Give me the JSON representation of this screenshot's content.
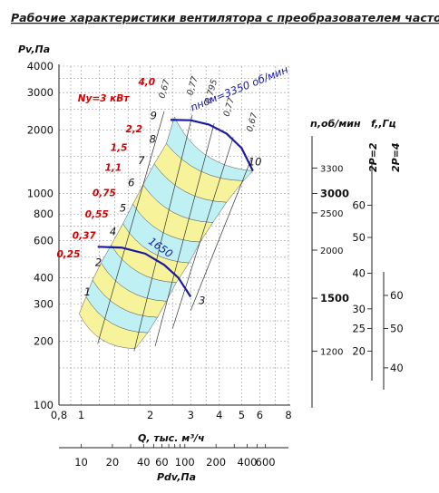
{
  "chart_data": {
    "type": "line",
    "title": "Рабочие характеристики вентилятора с преобразователем частоты",
    "ylabel": "Pv,Па",
    "xlabel": "Q, тыс. м³/ч",
    "x2label": "Pdv,Па",
    "rpm_label": "n,об/мин",
    "freq_label": "f,,Гц",
    "pole_labels": [
      "2P=2",
      "2P=4"
    ],
    "xscale": "log",
    "yscale": "log",
    "xlim": [
      0.8,
      8
    ],
    "ylim": [
      100,
      4000
    ],
    "grid": true,
    "y_ticks": [
      {
        "v": 100,
        "label": "100"
      },
      {
        "v": 200,
        "label": "200"
      },
      {
        "v": 300,
        "label": "300"
      },
      {
        "v": 400,
        "label": "400"
      },
      {
        "v": 600,
        "label": "600"
      },
      {
        "v": 800,
        "label": "800"
      },
      {
        "v": 1000,
        "label": "1000"
      },
      {
        "v": 2000,
        "label": "2000"
      },
      {
        "v": 3000,
        "label": "3000"
      },
      {
        "v": 4000,
        "label": "4000"
      }
    ],
    "x_ticks": [
      {
        "v": 0.8,
        "label": "0,8"
      },
      {
        "v": 1,
        "label": "1"
      },
      {
        "v": 2,
        "label": "2"
      },
      {
        "v": 3,
        "label": "3"
      },
      {
        "v": 4,
        "label": "4"
      },
      {
        "v": 5,
        "label": "5"
      },
      {
        "v": 6,
        "label": "6"
      },
      {
        "v": 8,
        "label": "8"
      }
    ],
    "pdv_ticks": [
      {
        "v": 10,
        "label": "10"
      },
      {
        "v": 20,
        "label": "20"
      },
      {
        "v": 40,
        "label": "40"
      },
      {
        "v": 60,
        "label": "60"
      },
      {
        "v": 100,
        "label": "100"
      },
      {
        "v": 200,
        "label": "200"
      },
      {
        "v": 400,
        "label": "400"
      },
      {
        "v": 600,
        "label": "600"
      }
    ],
    "rpm_ticks": [
      {
        "p": 180,
        "label": "1200",
        "bold": false
      },
      {
        "p": 320,
        "label": "1500",
        "bold": true
      },
      {
        "p": 540,
        "label": "2000",
        "bold": false
      },
      {
        "p": 810,
        "label": "2500",
        "bold": false
      },
      {
        "p": 1000,
        "label": "3000",
        "bold": true
      },
      {
        "p": 1320,
        "label": "3300",
        "bold": false
      }
    ],
    "freq_ticks_2p2": [
      {
        "p": 180,
        "label": "20"
      },
      {
        "p": 230,
        "label": "25"
      },
      {
        "p": 285,
        "label": "30"
      },
      {
        "p": 420,
        "label": "40"
      },
      {
        "p": 620,
        "label": "50"
      },
      {
        "p": 880,
        "label": "60"
      }
    ],
    "freq_ticks_2p4": [
      {
        "p": 150,
        "label": "40"
      },
      {
        "p": 230,
        "label": "50"
      },
      {
        "p": 330,
        "label": "60"
      }
    ],
    "bands": [
      {
        "label": "1",
        "color": "#f6f39a",
        "q_left": 0.98,
        "p_left": 270,
        "q_right": 1.72,
        "p_right": 185,
        "label_q": 1.03,
        "label_p": 330
      },
      {
        "label": "2",
        "color": "#bff0f3",
        "q_left": 1.05,
        "p_left": 325,
        "q_right": 1.95,
        "p_right": 220,
        "label_q": 1.15,
        "label_p": 455
      },
      {
        "label": "3",
        "color": "#f6f39a",
        "q_left": 1.12,
        "p_left": 390,
        "q_right": 2.15,
        "p_right": 260,
        "label_q": 3.25,
        "label_p": 300
      },
      {
        "label": "4",
        "color": "#bff0f3",
        "q_left": 1.22,
        "p_left": 470,
        "q_right": 2.35,
        "p_right": 310,
        "label_q": 1.33,
        "label_p": 635
      },
      {
        "label": "5",
        "color": "#f6f39a",
        "q_left": 1.35,
        "p_left": 570,
        "q_right": 2.6,
        "p_right": 380,
        "label_q": 1.47,
        "label_p": 820
      },
      {
        "label": "6",
        "color": "#bff0f3",
        "q_left": 1.52,
        "p_left": 720,
        "q_right": 2.95,
        "p_right": 470,
        "label_q": 1.6,
        "label_p": 1080
      },
      {
        "label": "7",
        "color": "#f6f39a",
        "q_left": 1.68,
        "p_left": 890,
        "q_right": 3.3,
        "p_right": 590,
        "label_q": 1.77,
        "label_p": 1380
      },
      {
        "label": "8",
        "color": "#bff0f3",
        "q_left": 1.86,
        "p_left": 1100,
        "q_right": 3.75,
        "p_right": 730,
        "label_q": 1.98,
        "label_p": 1740
      },
      {
        "label": "9",
        "color": "#f6f39a",
        "q_left": 2.08,
        "p_left": 1380,
        "q_right": 4.3,
        "p_right": 910,
        "label_q": 2.0,
        "label_p": 2250
      },
      {
        "label": "10",
        "color": "#bff0f3",
        "q_left": 2.35,
        "p_left": 1720,
        "q_right": 5.1,
        "p_right": 1150,
        "label_q": 5.35,
        "label_p": 1360
      }
    ],
    "band_top_envelope": [
      {
        "q": 0.98,
        "p": 270
      },
      {
        "q": 1.05,
        "p": 325
      },
      {
        "q": 1.12,
        "p": 390
      },
      {
        "q": 1.22,
        "p": 470
      },
      {
        "q": 1.35,
        "p": 570
      },
      {
        "q": 1.52,
        "p": 720
      },
      {
        "q": 1.68,
        "p": 890
      },
      {
        "q": 1.86,
        "p": 1100
      },
      {
        "q": 2.08,
        "p": 1380
      },
      {
        "q": 2.35,
        "p": 1720
      },
      {
        "q": 2.55,
        "p": 2300
      },
      {
        "q": 3.3,
        "p": 2200
      },
      {
        "q": 4.2,
        "p": 1950
      },
      {
        "q": 5.1,
        "p": 1560
      },
      {
        "q": 5.6,
        "p": 1280
      }
    ],
    "band_bottom_envelope": [
      {
        "q": 5.6,
        "p": 1280
      },
      {
        "q": 5.1,
        "p": 1150
      },
      {
        "q": 4.3,
        "p": 910
      },
      {
        "q": 3.75,
        "p": 730
      },
      {
        "q": 3.3,
        "p": 590
      },
      {
        "q": 2.95,
        "p": 470
      },
      {
        "q": 2.6,
        "p": 380
      },
      {
        "q": 2.35,
        "p": 310
      },
      {
        "q": 2.15,
        "p": 260
      },
      {
        "q": 1.95,
        "p": 220
      },
      {
        "q": 1.72,
        "p": 185
      },
      {
        "q": 1.55,
        "p": 215
      },
      {
        "q": 1.3,
        "p": 235
      },
      {
        "q": 1.1,
        "p": 250
      },
      {
        "q": 0.98,
        "p": 270
      }
    ],
    "speed_curves": [
      {
        "label": "nном=3350 об/мин",
        "n": 3350,
        "points": [
          {
            "q": 2.45,
            "p": 2230
          },
          {
            "q": 3.0,
            "p": 2220
          },
          {
            "q": 3.6,
            "p": 2120
          },
          {
            "q": 4.3,
            "p": 1920
          },
          {
            "q": 5.0,
            "p": 1640
          },
          {
            "q": 5.6,
            "p": 1280
          }
        ]
      },
      {
        "label": "1650",
        "n": 1650,
        "points": [
          {
            "q": 1.18,
            "p": 560
          },
          {
            "q": 1.5,
            "p": 555
          },
          {
            "q": 1.9,
            "p": 520
          },
          {
            "q": 2.3,
            "p": 460
          },
          {
            "q": 2.65,
            "p": 400
          },
          {
            "q": 3.0,
            "p": 325
          }
        ]
      }
    ],
    "efficiency_lines": [
      {
        "label": "0,67",
        "q_low": 1.18,
        "p_low": 195,
        "q_high": 2.3,
        "p_high": 2450,
        "label_q": 2.3,
        "label_p": 2800
      },
      {
        "label": "0,77",
        "q_low": 1.7,
        "p_low": 180,
        "q_high": 3.05,
        "p_high": 2350,
        "label_q": 3.05,
        "label_p": 2900
      },
      {
        "label": "0,795",
        "q_low": 2.1,
        "p_low": 190,
        "q_high": 3.8,
        "p_high": 2150,
        "label_q": 3.65,
        "label_p": 2650
      },
      {
        "label": "0,77",
        "q_low": 2.5,
        "p_low": 230,
        "q_high": 4.6,
        "p_high": 1850,
        "label_q": 4.4,
        "label_p": 2300
      },
      {
        "label": "0,67",
        "q_low": 3.0,
        "p_low": 280,
        "q_high": 5.5,
        "p_high": 1450,
        "label_q": 5.55,
        "label_p": 1950
      }
    ],
    "power_labels": [
      {
        "label": "0,25",
        "q": 0.88,
        "p": 500,
        "bold": false
      },
      {
        "label": "0,37",
        "q": 1.03,
        "p": 610,
        "bold": false
      },
      {
        "label": "0,55",
        "q": 1.17,
        "p": 770,
        "bold": false
      },
      {
        "label": "0,75",
        "q": 1.26,
        "p": 970,
        "bold": false
      },
      {
        "label": "1,1",
        "q": 1.38,
        "p": 1280,
        "bold": false
      },
      {
        "label": "1,5",
        "q": 1.46,
        "p": 1590,
        "bold": false
      },
      {
        "label": "2,2",
        "q": 1.7,
        "p": 1950,
        "bold": false
      },
      {
        "label": "Nу=3 кВт",
        "q": 1.25,
        "p": 2720,
        "bold": true
      },
      {
        "label": "4,0",
        "q": 1.93,
        "p": 3250,
        "bold": true
      }
    ]
  }
}
